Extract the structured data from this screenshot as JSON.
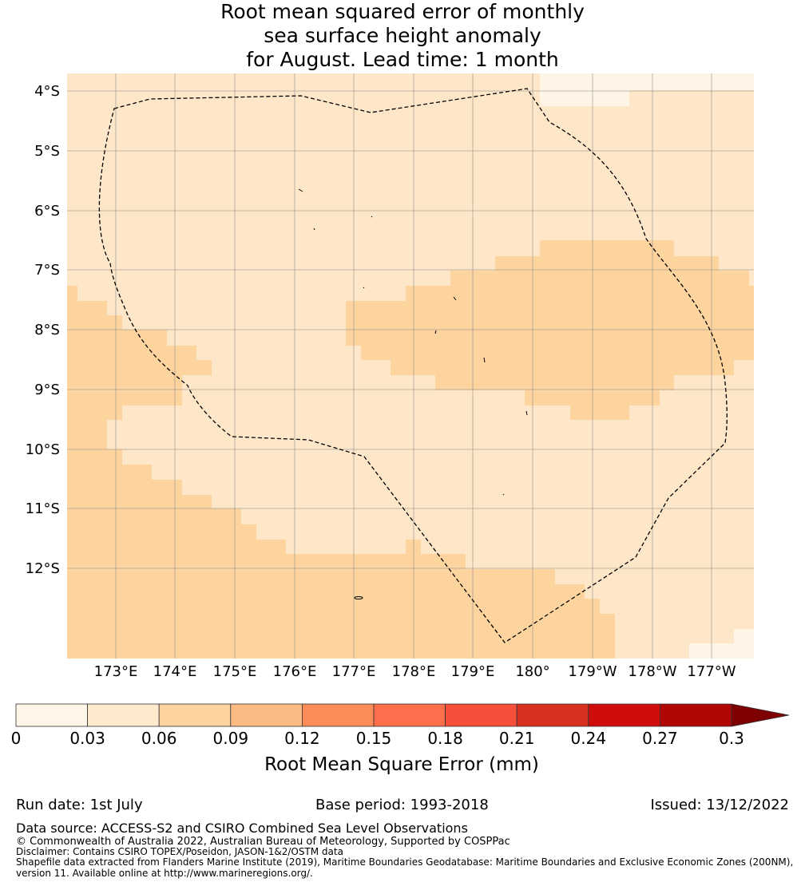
{
  "title": {
    "line1": "Root mean squared error of monthly",
    "line2": "sea surface height anomaly",
    "line3": "for August. Lead time: 1 month"
  },
  "map": {
    "lon_ticks": [
      "173°E",
      "174°E",
      "175°E",
      "176°E",
      "177°E",
      "178°E",
      "179°E",
      "180°",
      "179°W",
      "178°W",
      "177°W"
    ],
    "lat_ticks": [
      "4°S",
      "5°S",
      "6°S",
      "7°S",
      "8°S",
      "9°S",
      "10°S",
      "11°S",
      "12°S"
    ],
    "colors": {
      "band_lightest": "#fff5e6",
      "band_light": "#fee7c8",
      "band_mid": "#fdd49e",
      "grid": "#8c8c8c",
      "boundary": "#000000"
    }
  },
  "colorbar": {
    "label": "Root Mean Square Error (mm)",
    "tick_labels": [
      "0",
      "0.03",
      "0.06",
      "0.09",
      "0.12",
      "0.15",
      "0.18",
      "0.21",
      "0.24",
      "0.27",
      "0.3"
    ],
    "colors": [
      "#fff5e9",
      "#fee9cd",
      "#fdd49e",
      "#fdbb84",
      "#fc8d59",
      "#fd6e4d",
      "#f64f3a",
      "#d7301f",
      "#cf0d0d",
      "#b10404",
      "#7f0000"
    ]
  },
  "footer": {
    "run_date": "Run date: 1st July",
    "base_period": "Base period: 1993-2018",
    "issued": "Issued: 13/12/2022",
    "data_source": "Data source: ACCESS-S2 and CSIRO Combined Sea Level Observations",
    "copyright": "© Commonwealth of Australia 2022, Australian Bureau of Meteorology, Supported by COSPPac",
    "disclaimer": "Disclaimer: Contains CSIRO TOPEX/Poseidon, JASON-1&2/OSTM data",
    "shapefile_line1": "Shapefile data extracted from Flanders Marine Institute (2019), Maritime Boundaries Geodatabase: Maritime Boundaries and Exclusive Economic Zones (200NM),",
    "shapefile_line2": "version 11. Available online at http://www.marineregions.org/."
  }
}
